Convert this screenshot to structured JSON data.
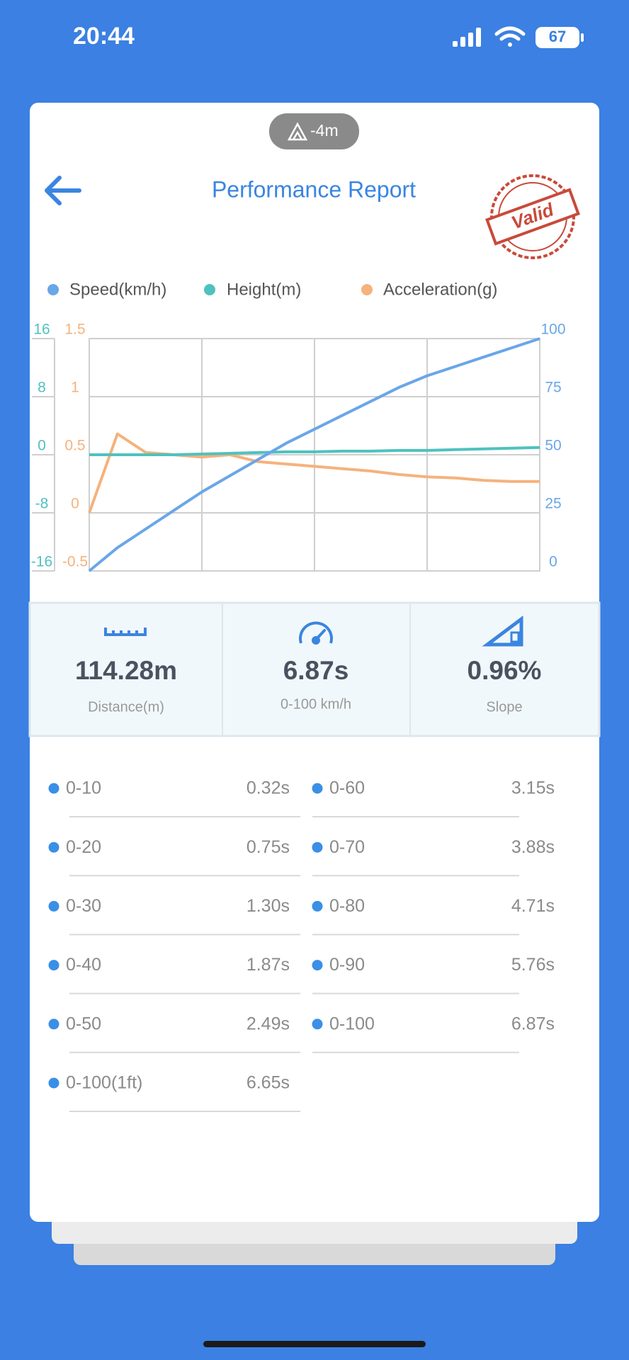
{
  "status_bar": {
    "time": "20:44",
    "battery": "67"
  },
  "badge": "-4m",
  "header": {
    "title": "Performance Report",
    "stamp": "Valid"
  },
  "chart_data": {
    "type": "line",
    "x": [
      0,
      1,
      2,
      3,
      4,
      5,
      6,
      7,
      8,
      9,
      10,
      11,
      12,
      13,
      14,
      15,
      16
    ],
    "xlim": [
      0,
      16
    ],
    "xticks": [
      0,
      4,
      8,
      12,
      16
    ],
    "ylim": [
      -16,
      16
    ],
    "yticks": [
      16,
      8,
      0,
      -8,
      -16
    ],
    "y3lim": [
      -0.5,
      1.5
    ],
    "y3ticks": [
      1.5,
      1,
      0.5,
      0,
      -0.5
    ],
    "y2lim": [
      0,
      100
    ],
    "y2ticks": [
      100,
      75,
      50,
      25,
      0
    ],
    "grid": true,
    "series": [
      {
        "name": "Speed(km/h)",
        "color": "#6aa6e8",
        "axis": "y2",
        "values": [
          0,
          10,
          18,
          26,
          34,
          41,
          48,
          55,
          61,
          67,
          73,
          79,
          84,
          88,
          92,
          96,
          100
        ]
      },
      {
        "name": "Height(m)",
        "color": "#4fc1bf",
        "axis": "y",
        "values": [
          0,
          0,
          0,
          0,
          0.1,
          0.2,
          0.3,
          0.4,
          0.4,
          0.5,
          0.5,
          0.6,
          0.6,
          0.7,
          0.8,
          0.9,
          1.0
        ]
      },
      {
        "name": "Acceleration(g)",
        "color": "#f5b27c",
        "axis": "y3",
        "values": [
          0,
          0.68,
          0.52,
          0.5,
          0.48,
          0.5,
          0.44,
          0.42,
          0.4,
          0.38,
          0.36,
          0.33,
          0.31,
          0.3,
          0.28,
          0.27,
          0.27
        ]
      }
    ]
  },
  "stats": [
    {
      "value": "114.28m",
      "label": "Distance(m)"
    },
    {
      "value": "6.87s",
      "label": "0-100 km/h"
    },
    {
      "value": "0.96%",
      "label": "Slope"
    }
  ],
  "list": [
    [
      {
        "label": "0-10",
        "value": "0.32s"
      },
      {
        "label": "0-60",
        "value": "3.15s"
      }
    ],
    [
      {
        "label": "0-20",
        "value": "0.75s"
      },
      {
        "label": "0-70",
        "value": "3.88s"
      }
    ],
    [
      {
        "label": "0-30",
        "value": "1.30s"
      },
      {
        "label": "0-80",
        "value": "4.71s"
      }
    ],
    [
      {
        "label": "0-40",
        "value": "1.87s"
      },
      {
        "label": "0-90",
        "value": "5.76s"
      }
    ],
    [
      {
        "label": "0-50",
        "value": "2.49s"
      },
      {
        "label": "0-100",
        "value": "6.87s"
      }
    ],
    [
      {
        "label": "0-100(1ft)",
        "value": "6.65s"
      }
    ]
  ]
}
